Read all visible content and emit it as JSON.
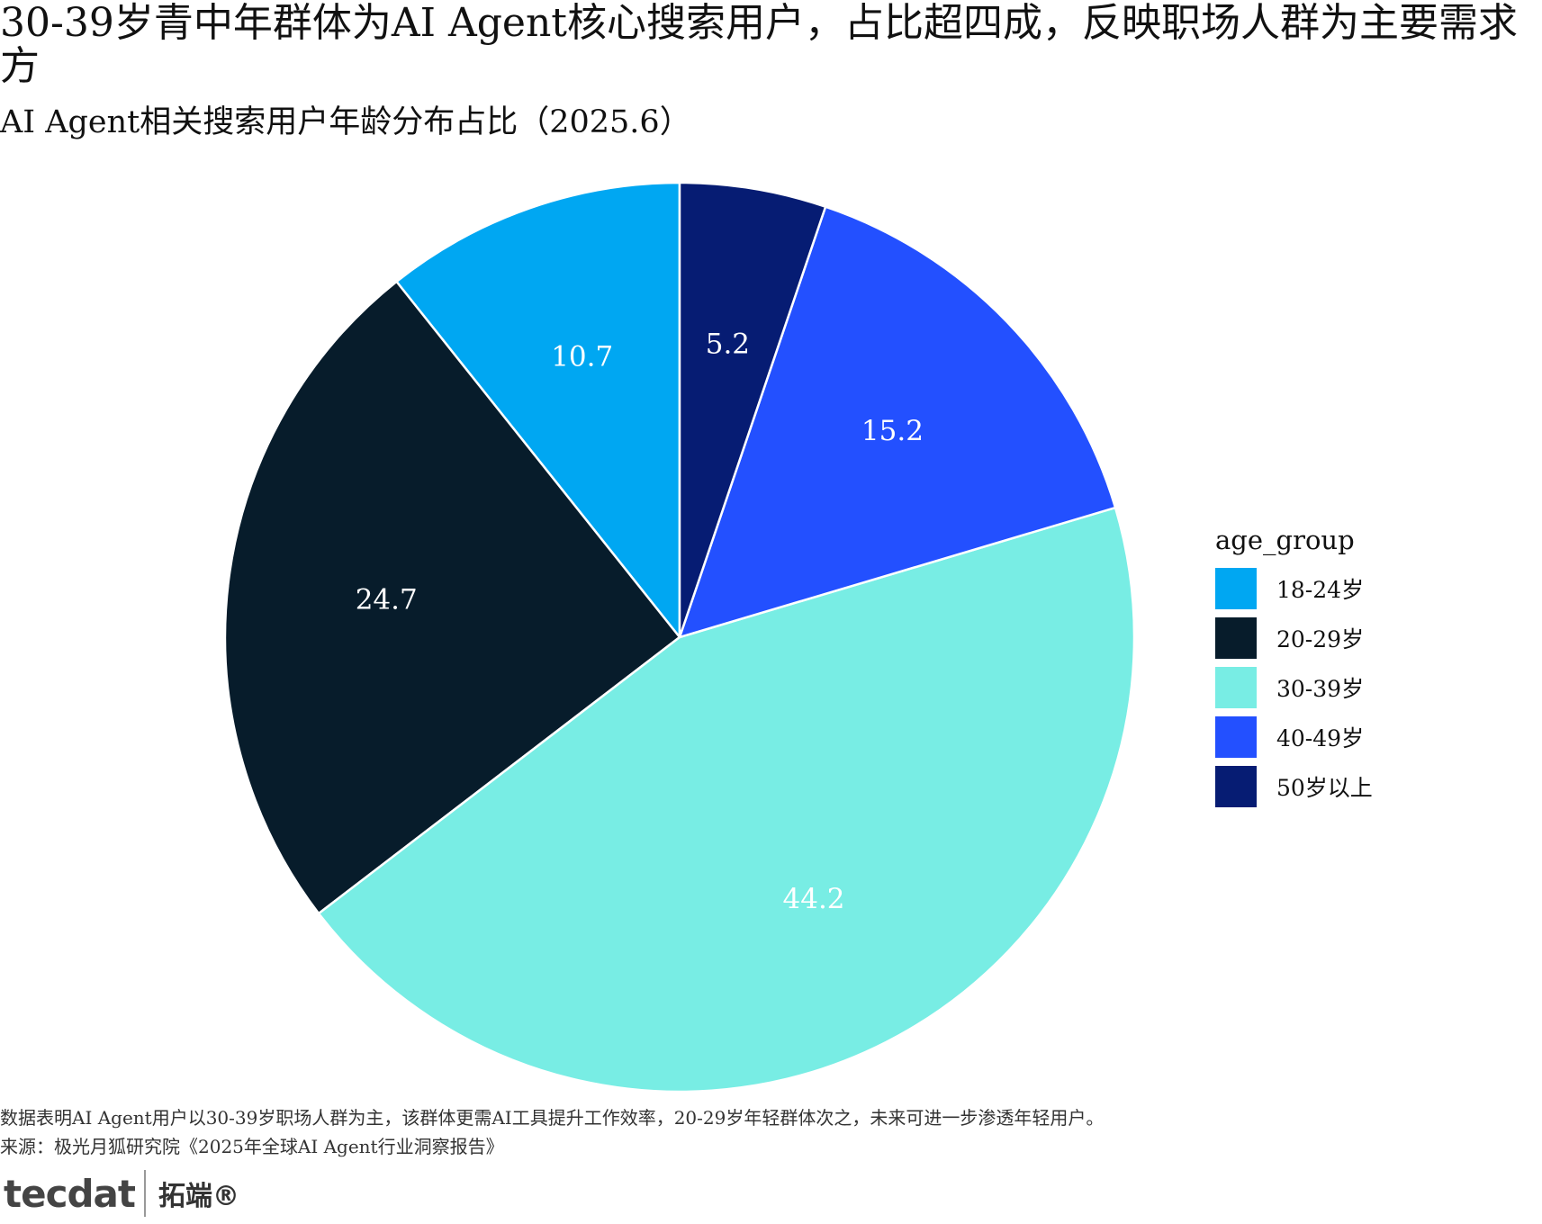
{
  "header": {
    "title": "30-39岁青中年群体为AI Agent核心搜索用户，占比超四成，反映职场人群为主要需求方",
    "subtitle": "AI Agent相关搜索用户年龄分布占比（2025.6）"
  },
  "chart_data": {
    "type": "pie",
    "start": "12 o'clock",
    "direction": "counter-clockwise",
    "categories": [
      "18-24岁",
      "20-29岁",
      "30-39岁",
      "40-49岁",
      "50岁以上"
    ],
    "values": [
      10.7,
      24.7,
      44.2,
      15.2,
      5.2
    ],
    "value_labels": [
      "10.7",
      "24.7",
      "44.2",
      "15.2",
      "5.2"
    ],
    "colors": [
      "#00a7f2",
      "#071c2b",
      "#78ede4",
      "#2350ff",
      "#061c73"
    ],
    "legend_title": "age_group",
    "legend_position": "right"
  },
  "footer": {
    "note": "数据表明AI Agent用户以30-39岁职场人群为主，该群体更需AI工具提升工作效率，20-29岁年轻群体次之，未来可进一步渗透年轻用户。",
    "source": "来源：极光月狐研究院《2025年全球AI Agent行业洞察报告》",
    "brand_mark": "tecdat",
    "brand_cn": "拓端®"
  }
}
